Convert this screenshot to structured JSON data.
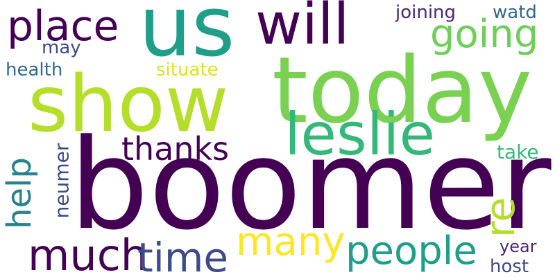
{
  "colors": {
    "dark_purple": "#440154",
    "purple": "#482878",
    "indigo": "#3e4a89",
    "slate_blue": "#31688e",
    "teal": "#26828e",
    "sea_green": "#1f9e89",
    "green": "#35b779",
    "lime": "#6ece58",
    "yellow_green": "#b5de2b",
    "yellow": "#fde725"
  },
  "words": {
    "boomer": "boomer",
    "show": "show",
    "today": "today",
    "us": "us",
    "will": "will",
    "place": "place",
    "going": "going",
    "leslie": "leslie",
    "thanks": "thanks",
    "help": "help",
    "neumer": "neumer",
    "much": "much",
    "time": "time",
    "many": "many",
    "people": "people",
    "re": "re",
    "year": "year",
    "host": "host",
    "take": "take",
    "joining": "joining",
    "watd": "watd",
    "may": "may",
    "health": "health",
    "situate": "situate"
  }
}
